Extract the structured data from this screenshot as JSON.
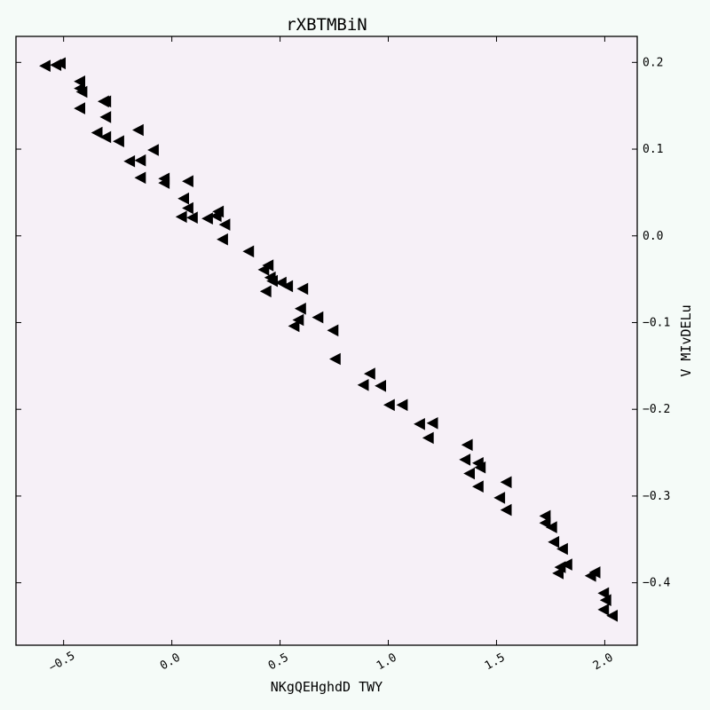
{
  "chart_data": {
    "type": "scatter",
    "title": "rXBTMBiN",
    "xlabel": "NKgQEHghdD TWY",
    "ylabel": "V MIvDELu",
    "xlim": [
      -0.72,
      2.15
    ],
    "ylim": [
      -0.472,
      0.23
    ],
    "x_ticks": [
      -0.5,
      0.0,
      0.5,
      1.0,
      1.5,
      2.0
    ],
    "x_tick_labels": [
      "−0.5",
      "0.0",
      "0.5",
      "1.0",
      "1.5",
      "2.0"
    ],
    "y_ticks": [
      0.2,
      0.1,
      0.0,
      -0.1,
      -0.2,
      -0.3,
      -0.4
    ],
    "y_tick_labels": [
      "0.2",
      "0.1",
      "0.0",
      "−0.1",
      "−0.2",
      "−0.3",
      "−0.4"
    ],
    "y_axis_position": "right",
    "grid": false,
    "legend": "none",
    "marker": "triangle-left",
    "colors": {
      "background": "#f5fbf8",
      "plot_area": "#f6f0f7",
      "marker": "#000000"
    },
    "series": [
      {
        "points": [
          [
            -0.58,
            0.196
          ],
          [
            -0.53,
            0.197
          ],
          [
            -0.51,
            0.199
          ],
          [
            -0.42,
            0.178
          ],
          [
            -0.42,
            0.17
          ],
          [
            -0.41,
            0.166
          ],
          [
            -0.42,
            0.147
          ],
          [
            -0.31,
            0.155
          ],
          [
            -0.3,
            0.155
          ],
          [
            -0.3,
            0.137
          ],
          [
            -0.34,
            0.119
          ],
          [
            -0.3,
            0.114
          ],
          [
            -0.24,
            0.109
          ],
          [
            -0.15,
            0.122
          ],
          [
            -0.19,
            0.086
          ],
          [
            -0.14,
            0.087
          ],
          [
            -0.14,
            0.067
          ],
          [
            -0.08,
            0.099
          ],
          [
            -0.03,
            0.066
          ],
          [
            -0.03,
            0.061
          ],
          [
            0.08,
            0.063
          ],
          [
            0.06,
            0.043
          ],
          [
            0.08,
            0.032
          ],
          [
            0.05,
            0.022
          ],
          [
            0.1,
            0.021
          ],
          [
            0.17,
            0.02
          ],
          [
            0.22,
            0.028
          ],
          [
            0.21,
            0.023
          ],
          [
            0.25,
            0.013
          ],
          [
            0.24,
            -0.004
          ],
          [
            0.36,
            -0.018
          ],
          [
            0.45,
            -0.034
          ],
          [
            0.43,
            -0.039
          ],
          [
            0.46,
            -0.048
          ],
          [
            0.47,
            -0.052
          ],
          [
            0.51,
            -0.054
          ],
          [
            0.54,
            -0.058
          ],
          [
            0.44,
            -0.064
          ],
          [
            0.61,
            -0.061
          ],
          [
            0.6,
            -0.084
          ],
          [
            0.59,
            -0.097
          ],
          [
            0.57,
            -0.104
          ],
          [
            0.68,
            -0.094
          ],
          [
            0.75,
            -0.109
          ],
          [
            0.76,
            -0.142
          ],
          [
            0.92,
            -0.159
          ],
          [
            0.89,
            -0.172
          ],
          [
            0.97,
            -0.173
          ],
          [
            1.01,
            -0.195
          ],
          [
            1.07,
            -0.195
          ],
          [
            1.15,
            -0.217
          ],
          [
            1.21,
            -0.216
          ],
          [
            1.19,
            -0.233
          ],
          [
            1.37,
            -0.241
          ],
          [
            1.36,
            -0.258
          ],
          [
            1.42,
            -0.262
          ],
          [
            1.43,
            -0.267
          ],
          [
            1.38,
            -0.274
          ],
          [
            1.42,
            -0.289
          ],
          [
            1.55,
            -0.284
          ],
          [
            1.52,
            -0.302
          ],
          [
            1.55,
            -0.316
          ],
          [
            1.73,
            -0.323
          ],
          [
            1.73,
            -0.331
          ],
          [
            1.76,
            -0.336
          ],
          [
            1.77,
            -0.353
          ],
          [
            1.81,
            -0.361
          ],
          [
            1.8,
            -0.382
          ],
          [
            1.83,
            -0.379
          ],
          [
            1.79,
            -0.389
          ],
          [
            1.96,
            -0.388
          ],
          [
            1.94,
            -0.392
          ],
          [
            2.0,
            -0.412
          ],
          [
            2.01,
            -0.42
          ],
          [
            2.0,
            -0.431
          ],
          [
            2.04,
            -0.438
          ]
        ]
      }
    ]
  }
}
